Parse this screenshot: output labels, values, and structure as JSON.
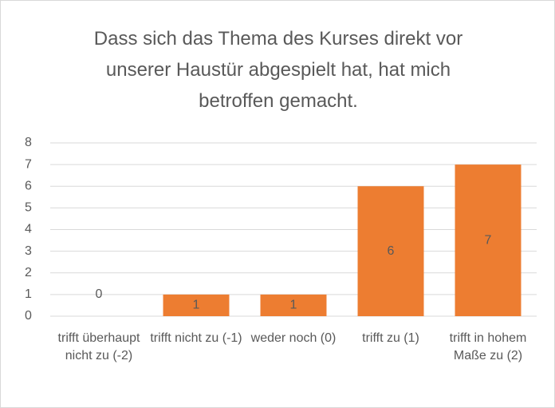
{
  "chart_data": {
    "type": "bar",
    "title": "Dass sich das Thema des Kurses direkt vor unserer Haustür abgespielt hat, hat mich betroffen gemacht.",
    "categories": [
      "trifft überhaupt nicht zu (-2)",
      "trifft nicht zu (-1)",
      "weder noch (0)",
      "trifft zu (1)",
      "trifft in hohem Maße zu (2)"
    ],
    "values": [
      0,
      1,
      1,
      6,
      7
    ],
    "color": "#ed7d31",
    "ylim": [
      0,
      8
    ],
    "yticks": [
      0,
      1,
      2,
      3,
      4,
      5,
      6,
      7,
      8
    ],
    "grid": true
  }
}
